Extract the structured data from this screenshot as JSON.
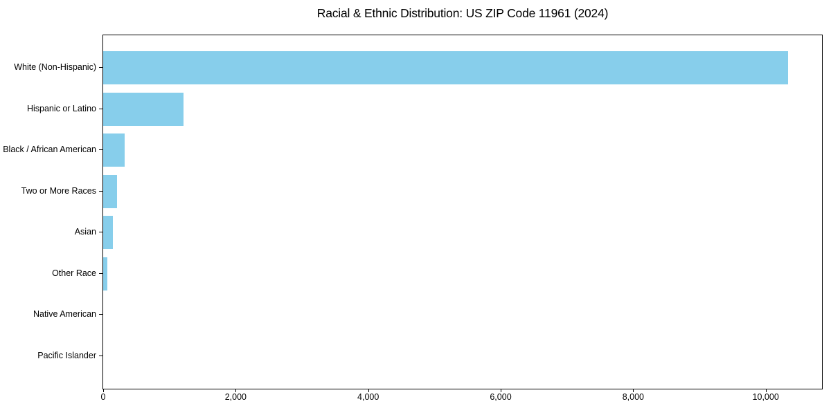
{
  "chart_data": {
    "type": "bar",
    "orientation": "horizontal",
    "title": "Racial & Ethnic Distribution: US ZIP Code 11961 (2024)",
    "categories": [
      "White (Non-Hispanic)",
      "Hispanic or Latino",
      "Black / African American",
      "Two or More Races",
      "Asian",
      "Other Race",
      "Native American",
      "Pacific Islander"
    ],
    "values": [
      10335,
      1210,
      325,
      210,
      145,
      60,
      0,
      0
    ],
    "xlabel": "",
    "ylabel": "",
    "xlim": [
      0,
      10850
    ],
    "xticks": [
      0,
      2000,
      4000,
      6000,
      8000,
      10000
    ],
    "xtick_labels": [
      "0",
      "2,000",
      "4,000",
      "6,000",
      "8,000",
      "10,000"
    ],
    "bar_color": "#87CEEB",
    "axis_color": "#000000",
    "text_color": "#000000",
    "background_color": "#ffffff",
    "grid": false,
    "legend": null
  }
}
